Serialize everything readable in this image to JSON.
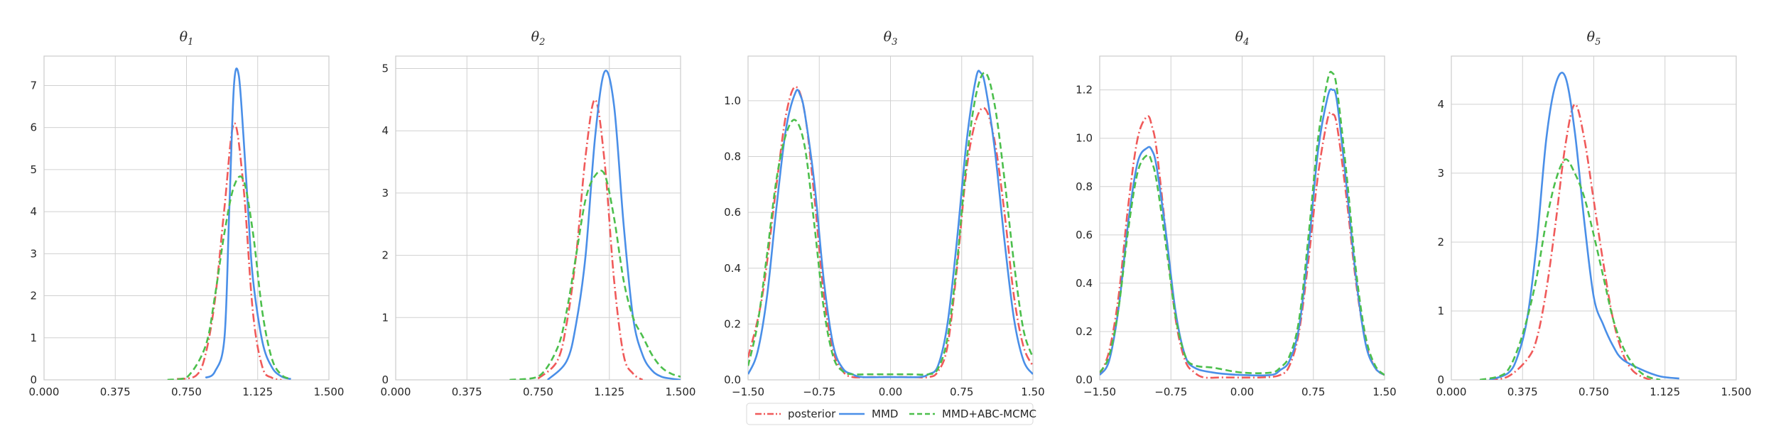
{
  "colors": {
    "posterior": "#f05a5a",
    "mmd": "#4a8fe8",
    "mmd_abc": "#4cbf4c",
    "grid": "#d0d0d0",
    "frame": "#cccccc"
  },
  "legend": {
    "placement": "bottom-center",
    "items": [
      {
        "label": "posterior",
        "style": "dashdot",
        "color_key": "posterior"
      },
      {
        "label": "MMD",
        "style": "solid",
        "color_key": "mmd"
      },
      {
        "label": "MMD+ABC-MCMC",
        "style": "dashed",
        "color_key": "mmd_abc"
      }
    ]
  },
  "chart_data": [
    {
      "type": "line",
      "title": "θ1",
      "title_base": "θ",
      "title_sub": "1",
      "xlim": [
        0,
        1.5
      ],
      "ylim": [
        0,
        7.7
      ],
      "grid": true,
      "xticks": [
        0,
        0.375,
        0.75,
        1.125,
        1.5
      ],
      "xtick_labels": [
        "0.000",
        "0.375",
        "0.750",
        "1.125",
        "1.500"
      ],
      "yticks": [
        0,
        1,
        2,
        3,
        4,
        5,
        6,
        7
      ],
      "ytick_labels": [
        "0",
        "1",
        "2",
        "3",
        "4",
        "5",
        "6",
        "7"
      ],
      "series": [
        {
          "name": "posterior",
          "x": [
            0.7,
            0.8,
            0.85,
            0.9,
            0.95,
            1.0,
            1.05,
            1.1,
            1.15,
            1.2,
            1.25
          ],
          "y": [
            0.02,
            0.1,
            0.6,
            1.9,
            4.1,
            6.1,
            4.6,
            1.6,
            0.3,
            0.05,
            0.0
          ]
        },
        {
          "name": "MMD",
          "x": [
            0.85,
            0.9,
            0.95,
            0.975,
            1.0,
            1.025,
            1.05,
            1.075,
            1.1,
            1.15,
            1.2,
            1.25,
            1.3
          ],
          "y": [
            0.05,
            0.2,
            1.0,
            4.0,
            7.0,
            7.25,
            5.8,
            4.0,
            2.4,
            0.9,
            0.3,
            0.08,
            0.02
          ]
        },
        {
          "name": "MMD+ABC-MCMC",
          "x": [
            0.65,
            0.75,
            0.85,
            0.9,
            0.95,
            1.0,
            1.05,
            1.1,
            1.15,
            1.2,
            1.25,
            1.3
          ],
          "y": [
            0.0,
            0.05,
            0.8,
            2.0,
            3.5,
            4.6,
            4.75,
            3.5,
            1.6,
            0.5,
            0.12,
            0.02
          ]
        }
      ]
    },
    {
      "type": "line",
      "title": "θ2",
      "title_base": "θ",
      "title_sub": "2",
      "xlim": [
        0,
        1.5
      ],
      "ylim": [
        0,
        5.2
      ],
      "grid": true,
      "xticks": [
        0,
        0.375,
        0.75,
        1.125,
        1.5
      ],
      "xtick_labels": [
        "0.000",
        "0.375",
        "0.750",
        "1.125",
        "1.500"
      ],
      "yticks": [
        0,
        1,
        2,
        3,
        4,
        5
      ],
      "ytick_labels": [
        "0",
        "1",
        "2",
        "3",
        "4",
        "5"
      ],
      "series": [
        {
          "name": "posterior",
          "x": [
            0.75,
            0.85,
            0.9,
            0.95,
            1.0,
            1.05,
            1.1,
            1.15,
            1.2,
            1.25,
            1.3
          ],
          "y": [
            0.02,
            0.3,
            0.9,
            2.0,
            3.6,
            4.5,
            3.5,
            1.6,
            0.4,
            0.1,
            0.0
          ]
        },
        {
          "name": "MMD",
          "x": [
            0.8,
            0.9,
            0.95,
            1.0,
            1.05,
            1.1,
            1.15,
            1.2,
            1.25,
            1.3,
            1.35,
            1.4,
            1.45,
            1.5
          ],
          "y": [
            0.0,
            0.3,
            0.9,
            2.0,
            3.9,
            4.95,
            4.4,
            2.5,
            1.0,
            0.4,
            0.15,
            0.05,
            0.02,
            0.0
          ]
        },
        {
          "name": "MMD+ABC-MCMC",
          "x": [
            0.6,
            0.75,
            0.85,
            0.9,
            0.95,
            1.0,
            1.05,
            1.1,
            1.15,
            1.2,
            1.25,
            1.3,
            1.35,
            1.4,
            1.45,
            1.5
          ],
          "y": [
            0.0,
            0.05,
            0.5,
            1.1,
            2.0,
            2.9,
            3.28,
            3.3,
            2.6,
            1.6,
            1.0,
            0.7,
            0.4,
            0.2,
            0.1,
            0.05
          ]
        }
      ]
    },
    {
      "type": "line",
      "title": "θ3",
      "title_base": "θ",
      "title_sub": "3",
      "xlim": [
        -1.5,
        1.5
      ],
      "ylim": [
        0,
        1.16
      ],
      "grid": true,
      "xticks": [
        -1.5,
        -0.75,
        0,
        0.75,
        1.5
      ],
      "xtick_labels": [
        "−1.50",
        "−0.75",
        "0.00",
        "0.75",
        "1.50"
      ],
      "yticks": [
        0,
        0.2,
        0.4,
        0.6,
        0.8,
        1.0
      ],
      "ytick_labels": [
        "0.0",
        "0.2",
        "0.4",
        "0.6",
        "0.8",
        "1.0"
      ],
      "series": [
        {
          "name": "posterior",
          "x": [
            -1.5,
            -1.35,
            -1.2,
            -1.1,
            -1.0,
            -0.9,
            -0.8,
            -0.7,
            -0.6,
            -0.5,
            -0.4,
            -0.2,
            0.2,
            0.4,
            0.5,
            0.6,
            0.7,
            0.8,
            0.9,
            1.0,
            1.1,
            1.2,
            1.3,
            1.4,
            1.5
          ],
          "y": [
            0.08,
            0.3,
            0.7,
            0.95,
            1.05,
            0.95,
            0.65,
            0.3,
            0.1,
            0.03,
            0.01,
            0.01,
            0.01,
            0.01,
            0.03,
            0.12,
            0.4,
            0.75,
            0.93,
            0.97,
            0.85,
            0.6,
            0.3,
            0.12,
            0.05
          ]
        },
        {
          "name": "MMD",
          "x": [
            -1.5,
            -1.4,
            -1.3,
            -1.2,
            -1.1,
            -1.0,
            -0.95,
            -0.9,
            -0.8,
            -0.7,
            -0.6,
            -0.5,
            -0.4,
            -0.3,
            0.0,
            0.3,
            0.4,
            0.5,
            0.6,
            0.7,
            0.8,
            0.9,
            0.95,
            1.0,
            1.1,
            1.2,
            1.3,
            1.4,
            1.5
          ],
          "y": [
            0.02,
            0.1,
            0.3,
            0.62,
            0.9,
            1.03,
            1.02,
            0.95,
            0.7,
            0.35,
            0.12,
            0.04,
            0.02,
            0.01,
            0.01,
            0.01,
            0.02,
            0.05,
            0.2,
            0.5,
            0.85,
            1.08,
            1.1,
            1.05,
            0.82,
            0.5,
            0.22,
            0.07,
            0.02
          ]
        },
        {
          "name": "MMD+ABC-MCMC",
          "x": [
            -1.5,
            -1.4,
            -1.3,
            -1.2,
            -1.1,
            -1.0,
            -0.9,
            -0.8,
            -0.7,
            -0.6,
            -0.5,
            -0.4,
            -0.2,
            0.0,
            0.2,
            0.4,
            0.5,
            0.6,
            0.7,
            0.8,
            0.9,
            1.0,
            1.1,
            1.2,
            1.3,
            1.4,
            1.5
          ],
          "y": [
            0.05,
            0.2,
            0.45,
            0.72,
            0.88,
            0.93,
            0.83,
            0.55,
            0.25,
            0.08,
            0.03,
            0.02,
            0.02,
            0.02,
            0.02,
            0.02,
            0.04,
            0.15,
            0.42,
            0.78,
            1.02,
            1.1,
            0.98,
            0.72,
            0.42,
            0.18,
            0.08
          ]
        }
      ]
    },
    {
      "type": "line",
      "title": "θ4",
      "title_base": "θ",
      "title_sub": "4",
      "xlim": [
        -1.5,
        1.5
      ],
      "ylim": [
        0,
        1.34
      ],
      "grid": true,
      "xticks": [
        -1.5,
        -0.75,
        0,
        0.75,
        1.5
      ],
      "xtick_labels": [
        "−1.50",
        "−0.75",
        "0.00",
        "0.75",
        "1.50"
      ],
      "yticks": [
        0,
        0.2,
        0.4,
        0.6,
        0.8,
        1.0,
        1.2
      ],
      "ytick_labels": [
        "0.0",
        "0.2",
        "0.4",
        "0.6",
        "0.8",
        "1.0",
        "1.2"
      ],
      "series": [
        {
          "name": "posterior",
          "x": [
            -1.5,
            -1.4,
            -1.3,
            -1.2,
            -1.1,
            -1.0,
            -0.95,
            -0.9,
            -0.8,
            -0.7,
            -0.6,
            -0.5,
            -0.4,
            -0.2,
            0.2,
            0.4,
            0.5,
            0.6,
            0.7,
            0.8,
            0.9,
            0.95,
            1.0,
            1.1,
            1.2,
            1.3,
            1.4,
            1.5
          ],
          "y": [
            0.02,
            0.12,
            0.35,
            0.72,
            1.0,
            1.09,
            1.05,
            0.95,
            0.6,
            0.25,
            0.08,
            0.03,
            0.01,
            0.01,
            0.01,
            0.02,
            0.06,
            0.2,
            0.5,
            0.85,
            1.08,
            1.1,
            1.05,
            0.75,
            0.4,
            0.16,
            0.05,
            0.02
          ]
        },
        {
          "name": "MMD",
          "x": [
            -1.5,
            -1.4,
            -1.3,
            -1.2,
            -1.1,
            -1.0,
            -0.95,
            -0.9,
            -0.8,
            -0.7,
            -0.6,
            -0.5,
            -0.3,
            0.0,
            0.3,
            0.4,
            0.5,
            0.6,
            0.7,
            0.8,
            0.9,
            0.95,
            1.0,
            1.1,
            1.2,
            1.3,
            1.4,
            1.5
          ],
          "y": [
            0.02,
            0.08,
            0.3,
            0.65,
            0.9,
            0.96,
            0.95,
            0.88,
            0.6,
            0.28,
            0.1,
            0.05,
            0.03,
            0.02,
            0.02,
            0.04,
            0.08,
            0.22,
            0.55,
            0.95,
            1.17,
            1.2,
            1.15,
            0.8,
            0.42,
            0.15,
            0.05,
            0.02
          ]
        },
        {
          "name": "MMD+ABC-MCMC",
          "x": [
            -1.5,
            -1.4,
            -1.3,
            -1.2,
            -1.1,
            -1.0,
            -0.95,
            -0.9,
            -0.8,
            -0.7,
            -0.6,
            -0.5,
            -0.3,
            0.0,
            0.3,
            0.4,
            0.5,
            0.6,
            0.7,
            0.8,
            0.9,
            0.95,
            1.0,
            1.1,
            1.2,
            1.3,
            1.4,
            1.5
          ],
          "y": [
            0.03,
            0.1,
            0.3,
            0.62,
            0.86,
            0.93,
            0.9,
            0.82,
            0.55,
            0.26,
            0.1,
            0.06,
            0.05,
            0.03,
            0.03,
            0.05,
            0.1,
            0.25,
            0.6,
            1.0,
            1.24,
            1.27,
            1.2,
            0.85,
            0.45,
            0.18,
            0.06,
            0.02
          ]
        }
      ]
    },
    {
      "type": "line",
      "title": "θ5",
      "title_base": "θ",
      "title_sub": "5",
      "xlim": [
        0,
        1.5
      ],
      "ylim": [
        0,
        4.7
      ],
      "grid": true,
      "xticks": [
        0,
        0.375,
        0.75,
        1.125,
        1.5
      ],
      "xtick_labels": [
        "0.000",
        "0.375",
        "0.750",
        "1.125",
        "1.500"
      ],
      "yticks": [
        0,
        1,
        2,
        3,
        4
      ],
      "ytick_labels": [
        "0",
        "1",
        "2",
        "3",
        "4"
      ],
      "series": [
        {
          "name": "posterior",
          "x": [
            0.2,
            0.3,
            0.4,
            0.45,
            0.5,
            0.55,
            0.6,
            0.65,
            0.7,
            0.75,
            0.8,
            0.85,
            0.9,
            0.95,
            1.0,
            1.05
          ],
          "y": [
            0.0,
            0.05,
            0.3,
            0.6,
            1.3,
            2.3,
            3.4,
            4.0,
            3.5,
            2.6,
            1.7,
            0.9,
            0.4,
            0.15,
            0.05,
            0.0
          ]
        },
        {
          "name": "MMD",
          "x": [
            0.2,
            0.3,
            0.35,
            0.4,
            0.45,
            0.5,
            0.55,
            0.6,
            0.65,
            0.7,
            0.75,
            0.8,
            0.85,
            0.9,
            1.0,
            1.1,
            1.2
          ],
          "y": [
            0.0,
            0.1,
            0.35,
            0.9,
            2.0,
            3.5,
            4.3,
            4.4,
            3.6,
            2.3,
            1.2,
            0.8,
            0.5,
            0.3,
            0.15,
            0.05,
            0.02
          ]
        },
        {
          "name": "MMD+ABC-MCMC",
          "x": [
            0.15,
            0.25,
            0.3,
            0.35,
            0.4,
            0.45,
            0.5,
            0.55,
            0.6,
            0.65,
            0.7,
            0.75,
            0.8,
            0.85,
            0.9,
            0.95,
            1.0,
            1.05,
            1.1
          ],
          "y": [
            0.0,
            0.05,
            0.15,
            0.45,
            0.9,
            1.5,
            2.3,
            2.9,
            3.2,
            3.0,
            2.65,
            2.1,
            1.5,
            0.9,
            0.5,
            0.25,
            0.1,
            0.03,
            0.0
          ]
        }
      ]
    }
  ]
}
